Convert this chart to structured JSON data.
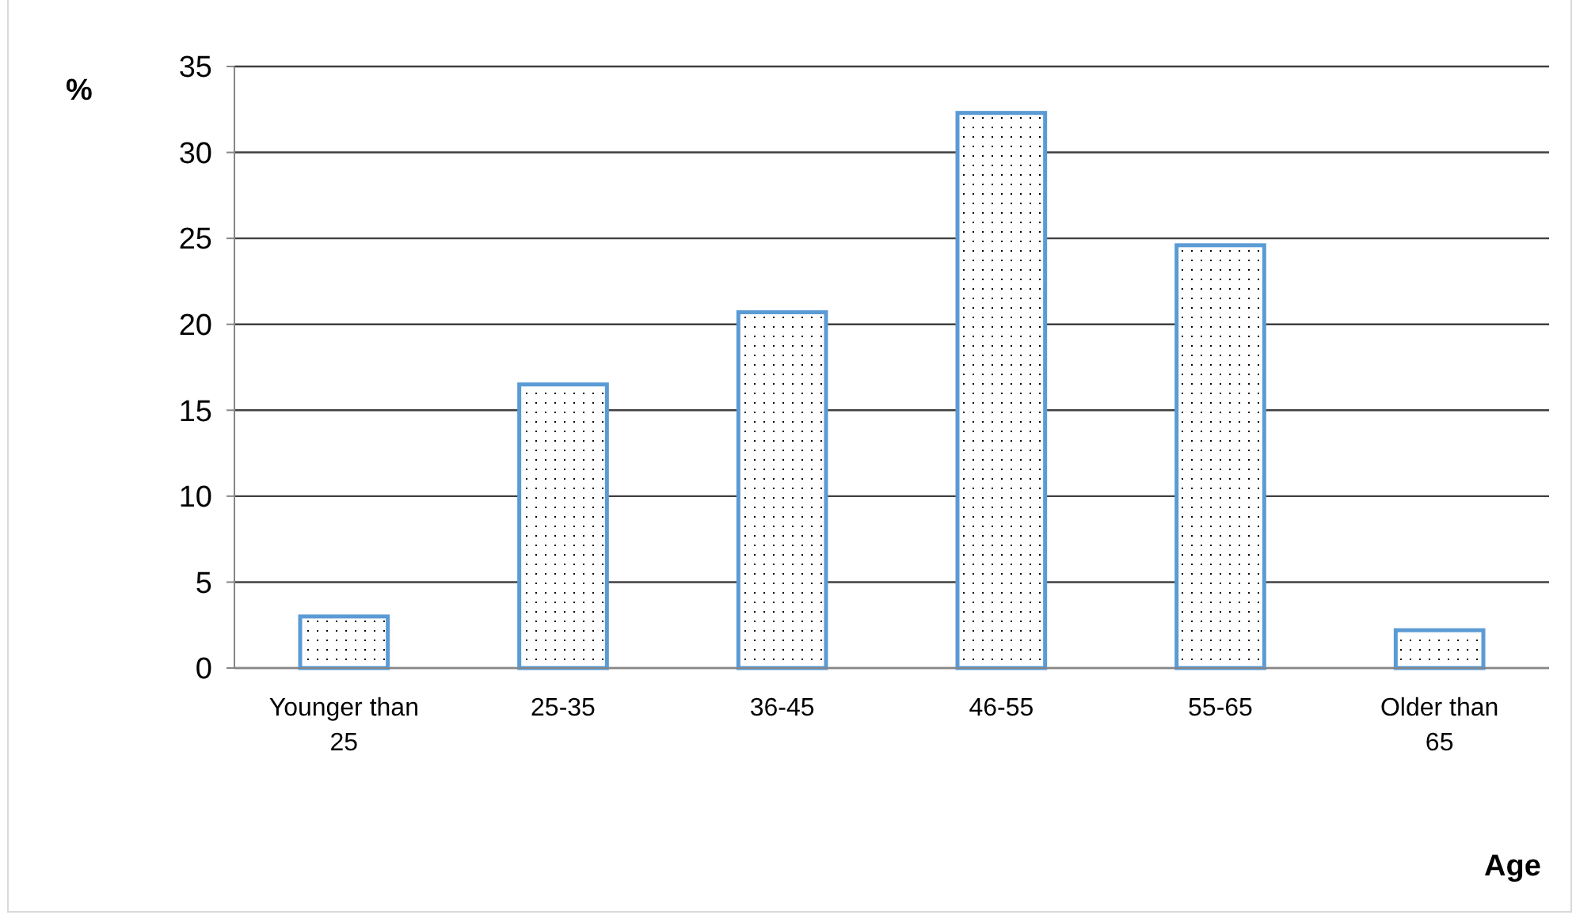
{
  "chart_data": {
    "type": "bar",
    "xlabel": "Age",
    "ylabel": "%",
    "categories": [
      "Younger than 25",
      "25-35",
      "36-45",
      "46-55",
      "55-65",
      "Older than 65"
    ],
    "values": [
      3.0,
      16.5,
      20.7,
      32.3,
      24.6,
      2.2
    ],
    "color": "#5b9bd5",
    "ylim": [
      0,
      35
    ],
    "yticks": [
      0,
      5,
      10,
      15,
      20,
      25,
      30,
      35
    ],
    "grid": "y"
  }
}
